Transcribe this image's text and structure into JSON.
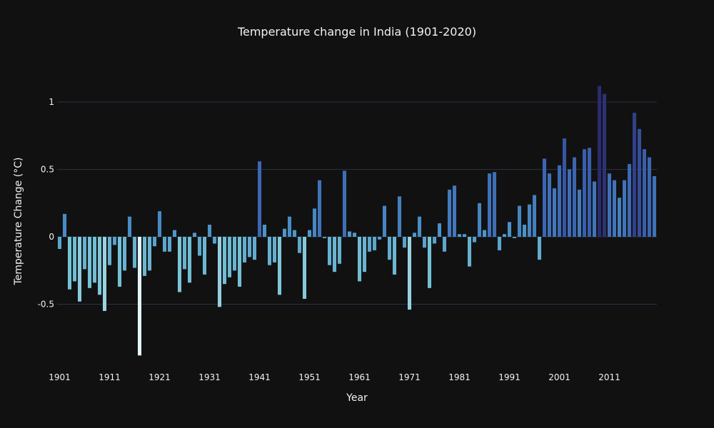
{
  "chart_data": {
    "type": "bar",
    "title": "Temperature change in India (1901-2020)",
    "xlabel": "Year",
    "ylabel": "Temperature Change (°C)",
    "x_start": 1901,
    "x_end": 2020,
    "ylim": [
      -1,
      1.3
    ],
    "xticks": [
      "1901",
      "1911",
      "1921",
      "1931",
      "1941",
      "1951",
      "1961",
      "1971",
      "1981",
      "1991",
      "2001",
      "2011"
    ],
    "yticks": [
      "1",
      "0.5",
      "0",
      "-0.5"
    ],
    "ytick_values": [
      1,
      0.5,
      0,
      -0.5
    ],
    "grid": true,
    "colorscale": [
      "#e0f3f8",
      "#74c1d4",
      "#4a8fc7",
      "#3a62b0",
      "#2b2b6f"
    ],
    "values": [
      -0.09,
      0.17,
      -0.39,
      -0.33,
      -0.48,
      -0.24,
      -0.38,
      -0.34,
      -0.43,
      -0.55,
      -0.21,
      -0.06,
      -0.37,
      -0.25,
      0.15,
      -0.23,
      -0.88,
      -0.29,
      -0.25,
      -0.07,
      0.19,
      -0.11,
      -0.11,
      0.05,
      -0.41,
      -0.24,
      -0.34,
      0.03,
      -0.14,
      -0.28,
      0.09,
      -0.05,
      -0.52,
      -0.35,
      -0.3,
      -0.25,
      -0.37,
      -0.19,
      -0.15,
      -0.17,
      0.56,
      0.09,
      -0.21,
      -0.19,
      -0.43,
      0.06,
      0.15,
      0.05,
      -0.12,
      -0.46,
      0.05,
      0.21,
      0.42,
      -0.01,
      -0.21,
      -0.26,
      -0.2,
      0.49,
      0.04,
      0.03,
      -0.33,
      -0.26,
      -0.11,
      -0.1,
      -0.02,
      0.23,
      -0.17,
      -0.28,
      0.3,
      -0.08,
      -0.54,
      0.03,
      0.15,
      -0.08,
      -0.38,
      -0.05,
      0.1,
      -0.11,
      0.35,
      0.38,
      0.02,
      0.02,
      -0.22,
      -0.04,
      0.25,
      0.05,
      0.47,
      0.48,
      -0.1,
      0.02,
      0.11,
      -0.01,
      0.23,
      0.09,
      0.24,
      0.31,
      -0.17,
      0.58,
      0.47,
      0.36,
      0.53,
      0.73,
      0.5,
      0.59,
      0.35,
      0.65,
      0.66,
      0.41,
      1.12,
      1.06,
      0.47,
      0.42,
      0.29,
      0.42,
      0.54,
      0.92,
      0.8,
      0.65,
      0.59,
      0.45
    ]
  }
}
